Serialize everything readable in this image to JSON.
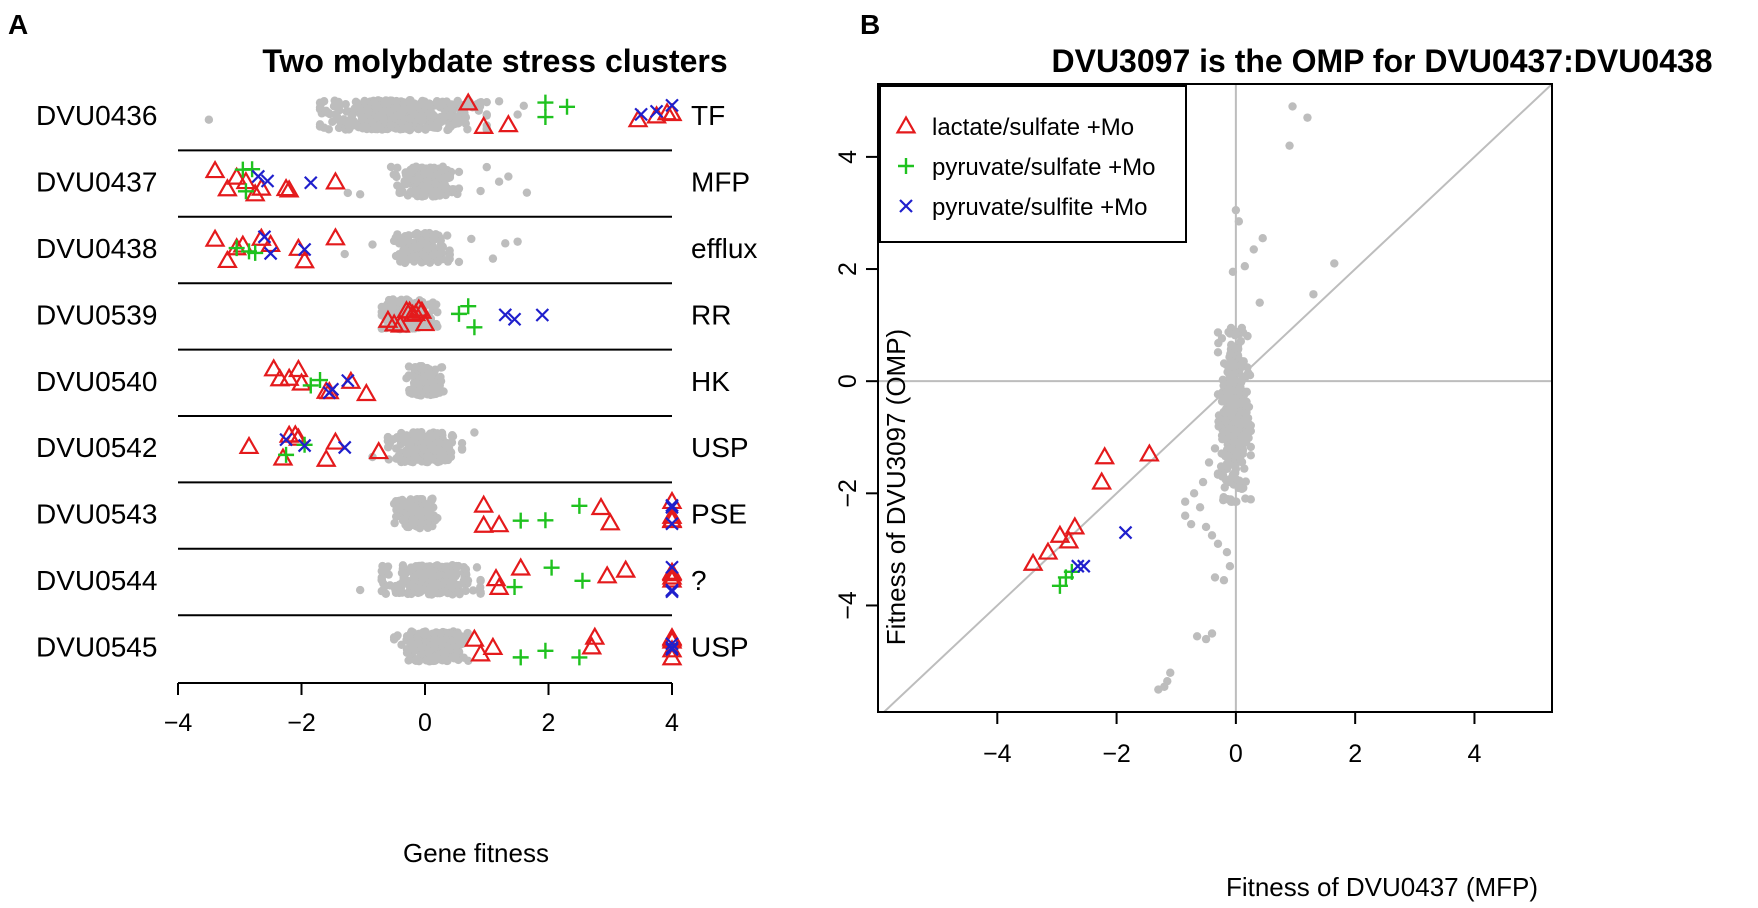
{
  "colors": {
    "lactate": "#e41a1c",
    "pyruvate_sulfate": "#1fc21f",
    "pyruvate_sulfite": "#1f1fcc",
    "background_points": "#bdbdbd",
    "lines": "#bdbdbd",
    "axis": "#000000"
  },
  "chart_data": [
    {
      "panel": "A",
      "type": "scatter",
      "title": "Two molybdate stress clusters",
      "xlabel": "Gene fitness",
      "xlim": [
        -4,
        4
      ],
      "xticks": [
        -4,
        -2,
        0,
        2,
        4
      ],
      "xtick_labels": [
        "−4",
        "−2",
        "0",
        "2",
        "4"
      ],
      "rows": [
        {
          "gene": "DVU0436",
          "role": "TF",
          "background_range": [
            -1.7,
            1.0
          ],
          "outliers": [
            -3.5,
            -1.6,
            -1.4,
            1.0,
            1.2,
            1.5,
            1.6
          ],
          "lactate": [
            0.7,
            0.95,
            1.35,
            3.45,
            3.75,
            3.92,
            4.0,
            4.0
          ],
          "pyruvate_sulfate": [
            1.95,
            1.95,
            2.3
          ],
          "pyruvate_sulfite": [
            3.5,
            3.75,
            4.0
          ]
        },
        {
          "gene": "DVU0437",
          "role": "MFP",
          "background_range": [
            -0.55,
            0.55
          ],
          "outliers": [
            -1.25,
            -1.05,
            0.9,
            1.0,
            1.2,
            1.35,
            1.65
          ],
          "lactate": [
            -3.4,
            -3.2,
            -3.05,
            -2.9,
            -2.75,
            -2.65,
            -2.25,
            -2.2,
            -1.45
          ],
          "pyruvate_sulfate": [
            -2.95,
            -2.8,
            -2.9
          ],
          "pyruvate_sulfite": [
            -2.7,
            -2.55,
            -1.85
          ]
        },
        {
          "gene": "DVU0438",
          "role": "efflux",
          "background_range": [
            -0.5,
            0.4
          ],
          "outliers": [
            -1.3,
            -0.85,
            0.55,
            0.75,
            1.1,
            1.3,
            1.5
          ],
          "lactate": [
            -3.4,
            -3.2,
            -3.05,
            -2.95,
            -2.65,
            -2.5,
            -2.05,
            -1.95,
            -1.45
          ],
          "pyruvate_sulfate": [
            -3.05,
            -2.85,
            -2.75
          ],
          "pyruvate_sulfite": [
            -2.6,
            -2.5,
            -1.95
          ]
        },
        {
          "gene": "DVU0539",
          "role": "RR",
          "background_range": [
            -0.7,
            0.2
          ],
          "outliers": [],
          "lactate": [
            -0.6,
            -0.5,
            -0.4,
            -0.3,
            -0.25,
            -0.2,
            -0.15,
            -0.1,
            0.0,
            -0.05
          ],
          "pyruvate_sulfate": [
            0.55,
            0.7,
            0.8
          ],
          "pyruvate_sulfite": [
            1.3,
            1.45,
            1.9
          ]
        },
        {
          "gene": "DVU0540",
          "role": "HK",
          "background_range": [
            -0.3,
            0.3
          ],
          "outliers": [],
          "lactate": [
            -2.45,
            -2.35,
            -2.2,
            -2.05,
            -2.0,
            -1.6,
            -1.55,
            -1.2,
            -0.95
          ],
          "pyruvate_sulfate": [
            -1.85,
            -1.7
          ],
          "pyruvate_sulfite": [
            -1.55,
            -1.5,
            -1.25
          ]
        },
        {
          "gene": "DVU0542",
          "role": "USP",
          "background_range": [
            -0.6,
            0.6
          ],
          "outliers": [
            -0.85,
            0.8
          ],
          "lactate": [
            -2.85,
            -2.3,
            -2.2,
            -2.1,
            -2.05,
            -1.6,
            -1.45,
            -0.75
          ],
          "pyruvate_sulfate": [
            -2.25,
            -1.95
          ],
          "pyruvate_sulfite": [
            -2.25,
            -1.95,
            -1.3
          ]
        },
        {
          "gene": "DVU0543",
          "role": "PSE",
          "background_range": [
            -0.5,
            0.2
          ],
          "outliers": [],
          "lactate": [
            0.95,
            0.95,
            1.2,
            2.85,
            3.0,
            4.0,
            4.0,
            4.0,
            4.0
          ],
          "pyruvate_sulfate": [
            1.55,
            1.95,
            2.5
          ],
          "pyruvate_sulfite": [
            4.0,
            4.0,
            4.0
          ]
        },
        {
          "gene": "DVU0544",
          "role": "?",
          "background_range": [
            -0.7,
            0.9
          ],
          "outliers": [
            -1.05,
            -0.7
          ],
          "lactate": [
            1.15,
            1.2,
            1.55,
            2.95,
            3.25,
            4.0,
            4.0,
            4.0,
            4.0
          ],
          "pyruvate_sulfate": [
            1.45,
            2.05,
            2.55
          ],
          "pyruvate_sulfite": [
            4.0,
            4.0,
            4.0
          ]
        },
        {
          "gene": "DVU0545",
          "role": "USP",
          "background_range": [
            -0.5,
            0.7
          ],
          "outliers": [],
          "lactate": [
            0.8,
            0.9,
            1.1,
            2.7,
            2.75,
            4.0,
            4.0,
            4.0,
            4.0,
            4.0
          ],
          "pyruvate_sulfate": [
            1.55,
            1.95,
            2.5
          ],
          "pyruvate_sulfite": [
            4.0,
            4.0,
            4.0
          ]
        }
      ]
    },
    {
      "panel": "B",
      "type": "scatter",
      "title": "DVU3097 is the OMP for DVU0437:DVU0438",
      "xlabel": "Fitness of DVU0437 (MFP)",
      "ylabel": "Fitness of DVU3097 (OMP)",
      "xlim": [
        -6,
        5.3
      ],
      "ylim": [
        -5.9,
        5.3
      ],
      "xticks": [
        -4,
        -2,
        0,
        2,
        4
      ],
      "xtick_labels": [
        "−4",
        "−2",
        "0",
        "2",
        "4"
      ],
      "yticks": [
        -4,
        -2,
        0,
        2,
        4
      ],
      "ytick_labels": [
        "−4",
        "−2",
        "0",
        "2",
        "4"
      ],
      "reference_lines": [
        "x=0",
        "y=0",
        "y=x"
      ],
      "legend": {
        "position": "top-left",
        "entries": [
          {
            "label": "lactate/sulfate +Mo",
            "series": "lactate"
          },
          {
            "label": "pyruvate/sulfate +Mo",
            "series": "pyruvate_sulfate"
          },
          {
            "label": "pyruvate/sulfite +Mo",
            "series": "pyruvate_sulfite"
          }
        ]
      },
      "background_points": [
        [
          0.95,
          4.9
        ],
        [
          1.2,
          4.7
        ],
        [
          0.9,
          4.2
        ],
        [
          0,
          3.05
        ],
        [
          0.05,
          2.85
        ],
        [
          0.45,
          2.55
        ],
        [
          0.3,
          2.35
        ],
        [
          0.15,
          2.05
        ],
        [
          -0.05,
          1.95
        ],
        [
          1.65,
          2.1
        ],
        [
          1.3,
          1.55
        ],
        [
          0.4,
          1.4
        ],
        [
          0.1,
          0.95
        ],
        [
          -0.1,
          0.85
        ],
        [
          -0.2,
          -0.9
        ],
        [
          -0.35,
          -1.2
        ],
        [
          -0.45,
          -1.45
        ],
        [
          -0.55,
          -1.8
        ],
        [
          -0.7,
          -2.0
        ],
        [
          -0.6,
          -2.25
        ],
        [
          -0.85,
          -2.4
        ],
        [
          -0.5,
          -2.6
        ],
        [
          -0.4,
          -2.75
        ],
        [
          -0.3,
          -2.9
        ],
        [
          -0.15,
          -3.05
        ],
        [
          -0.1,
          -3.3
        ],
        [
          -0.35,
          -3.5
        ],
        [
          -0.2,
          -3.55
        ],
        [
          -0.4,
          -4.5
        ],
        [
          -0.5,
          -4.6
        ],
        [
          -0.65,
          -4.55
        ],
        [
          -1.1,
          -5.2
        ],
        [
          -1.15,
          -5.35
        ],
        [
          -1.2,
          -5.45
        ],
        [
          -1.3,
          -5.5
        ],
        [
          -0.85,
          -2.15
        ],
        [
          -0.75,
          -2.55
        ]
      ],
      "background_cluster": {
        "x_range": [
          -0.3,
          0.25
        ],
        "y_range": [
          -2.1,
          1.0
        ]
      },
      "lactate": [
        [
          -3.4,
          -3.25
        ],
        [
          -3.15,
          -3.05
        ],
        [
          -2.95,
          -2.75
        ],
        [
          -2.8,
          -2.85
        ],
        [
          -2.7,
          -2.6
        ],
        [
          -2.25,
          -1.8
        ],
        [
          -2.2,
          -1.35
        ],
        [
          -1.45,
          -1.3
        ]
      ],
      "pyruvate_sulfate": [
        [
          -2.95,
          -3.65
        ],
        [
          -2.85,
          -3.5
        ],
        [
          -2.75,
          -3.4
        ]
      ],
      "pyruvate_sulfite": [
        [
          -2.65,
          -3.3
        ],
        [
          -2.55,
          -3.3
        ],
        [
          -1.85,
          -2.7
        ]
      ]
    }
  ],
  "panels": {
    "a_letter": "A",
    "b_letter": "B"
  }
}
